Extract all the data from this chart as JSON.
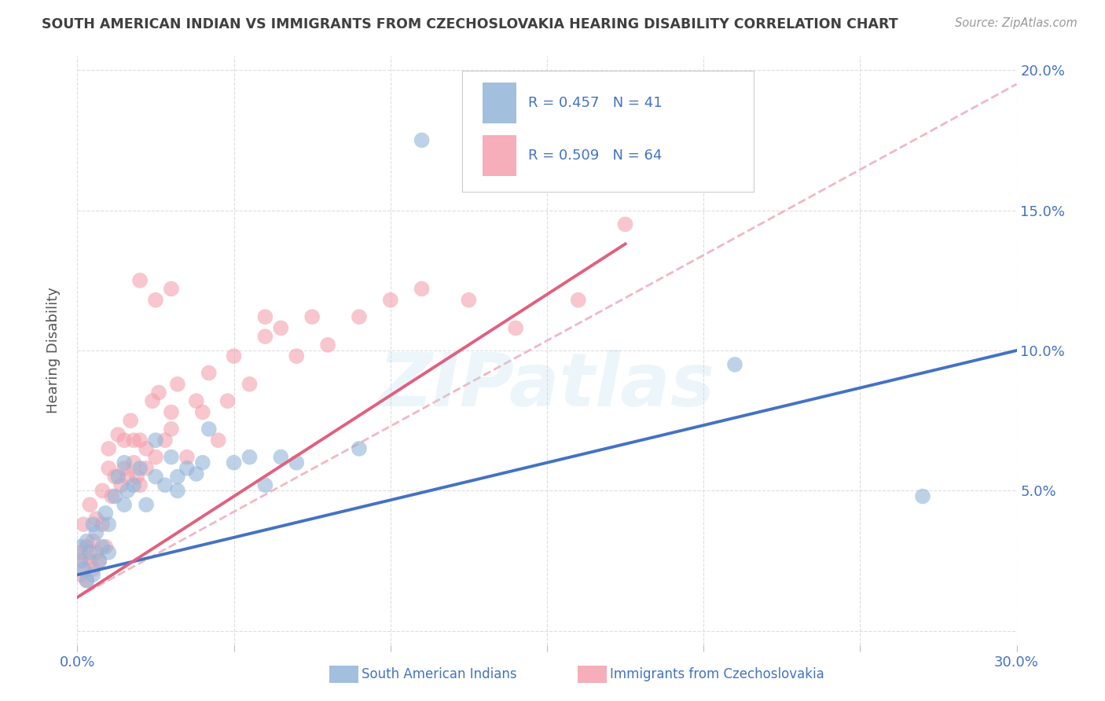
{
  "title": "SOUTH AMERICAN INDIAN VS IMMIGRANTS FROM CZECHOSLOVAKIA HEARING DISABILITY CORRELATION CHART",
  "source": "Source: ZipAtlas.com",
  "ylabel": "Hearing Disability",
  "yticks": [
    0.0,
    0.05,
    0.1,
    0.15,
    0.2
  ],
  "ytick_labels": [
    "",
    "5.0%",
    "10.0%",
    "15.0%",
    "20.0%"
  ],
  "xticks": [
    0.0,
    0.05,
    0.1,
    0.15,
    0.2,
    0.25,
    0.3
  ],
  "xlim": [
    0.0,
    0.3
  ],
  "ylim": [
    -0.005,
    0.205
  ],
  "legend_blue_r": "R = 0.457",
  "legend_blue_n": "N = 41",
  "legend_pink_r": "R = 0.509",
  "legend_pink_n": "N = 64",
  "blue_label": "South American Indians",
  "pink_label": "Immigrants from Czechoslovakia",
  "blue_color": "#92B4D8",
  "pink_color": "#F4A0AE",
  "blue_line_color": "#4472C4",
  "pink_line_color": "#E06080",
  "dashed_line_color": "#F0B8C4",
  "background_color": "#FFFFFF",
  "title_color": "#404040",
  "axis_label_color": "#4472C4",
  "watermark": "ZIPatlas",
  "blue_scatter_x": [
    0.001,
    0.001,
    0.002,
    0.003,
    0.003,
    0.004,
    0.005,
    0.005,
    0.006,
    0.007,
    0.008,
    0.009,
    0.01,
    0.01,
    0.012,
    0.013,
    0.015,
    0.015,
    0.016,
    0.018,
    0.02,
    0.022,
    0.025,
    0.025,
    0.028,
    0.03,
    0.032,
    0.032,
    0.035,
    0.038,
    0.04,
    0.042,
    0.05,
    0.055,
    0.06,
    0.065,
    0.07,
    0.09,
    0.11,
    0.21,
    0.27
  ],
  "blue_scatter_y": [
    0.025,
    0.03,
    0.022,
    0.018,
    0.032,
    0.028,
    0.02,
    0.038,
    0.035,
    0.025,
    0.03,
    0.042,
    0.038,
    0.028,
    0.048,
    0.055,
    0.045,
    0.06,
    0.05,
    0.052,
    0.058,
    0.045,
    0.055,
    0.068,
    0.052,
    0.062,
    0.055,
    0.05,
    0.058,
    0.056,
    0.06,
    0.072,
    0.06,
    0.062,
    0.052,
    0.062,
    0.06,
    0.065,
    0.175,
    0.095,
    0.048
  ],
  "pink_scatter_x": [
    0.001,
    0.001,
    0.002,
    0.002,
    0.003,
    0.003,
    0.004,
    0.004,
    0.005,
    0.005,
    0.006,
    0.006,
    0.007,
    0.008,
    0.008,
    0.009,
    0.01,
    0.01,
    0.011,
    0.012,
    0.013,
    0.014,
    0.015,
    0.015,
    0.016,
    0.017,
    0.018,
    0.018,
    0.019,
    0.02,
    0.02,
    0.022,
    0.022,
    0.024,
    0.025,
    0.026,
    0.028,
    0.03,
    0.03,
    0.032,
    0.035,
    0.038,
    0.04,
    0.042,
    0.045,
    0.048,
    0.05,
    0.055,
    0.06,
    0.065,
    0.07,
    0.075,
    0.08,
    0.09,
    0.1,
    0.11,
    0.125,
    0.14,
    0.16,
    0.175,
    0.02,
    0.025,
    0.03,
    0.06
  ],
  "pink_scatter_y": [
    0.02,
    0.028,
    0.025,
    0.038,
    0.018,
    0.03,
    0.025,
    0.045,
    0.022,
    0.032,
    0.028,
    0.04,
    0.025,
    0.038,
    0.05,
    0.03,
    0.058,
    0.065,
    0.048,
    0.055,
    0.07,
    0.052,
    0.058,
    0.068,
    0.055,
    0.075,
    0.06,
    0.068,
    0.055,
    0.052,
    0.068,
    0.065,
    0.058,
    0.082,
    0.062,
    0.085,
    0.068,
    0.072,
    0.078,
    0.088,
    0.062,
    0.082,
    0.078,
    0.092,
    0.068,
    0.082,
    0.098,
    0.088,
    0.105,
    0.108,
    0.098,
    0.112,
    0.102,
    0.112,
    0.118,
    0.122,
    0.118,
    0.108,
    0.118,
    0.145,
    0.125,
    0.118,
    0.122,
    0.112
  ],
  "blue_trend_x": [
    0.0,
    0.3
  ],
  "blue_trend_y": [
    0.02,
    0.1
  ],
  "pink_trend_x": [
    0.0,
    0.175
  ],
  "pink_trend_y": [
    0.012,
    0.138
  ],
  "dashed_trend_x": [
    0.0,
    0.3
  ],
  "dashed_trend_y": [
    0.012,
    0.195
  ]
}
